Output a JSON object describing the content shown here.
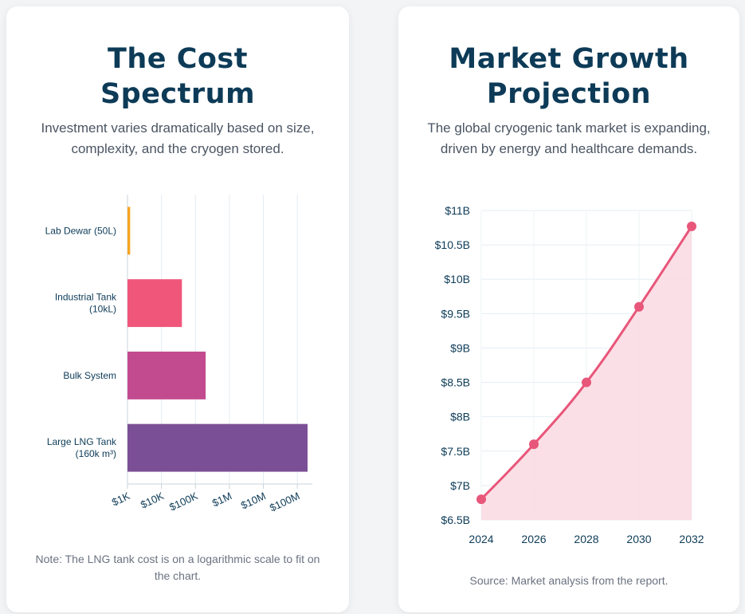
{
  "cost_card": {
    "title_line1": "The Cost",
    "title_line2": "Spectrum",
    "subtitle": "Investment varies dramatically based on size, complexity, and the cryogen stored.",
    "note": "Note: The LNG tank cost is on a logarithmic scale to fit on the chart."
  },
  "growth_card": {
    "title_line1": "Market Growth",
    "title_line2": "Projection",
    "subtitle": "The global cryogenic tank market is expanding, driven by energy and healthcare demands.",
    "note": "Source: Market analysis from the report."
  },
  "chart_data": [
    {
      "type": "bar",
      "orientation": "horizontal",
      "x_scale": "log",
      "categories": [
        [
          "Lab Dewar (50L)"
        ],
        [
          "Industrial Tank",
          "(10kL)"
        ],
        [
          "Bulk System"
        ],
        [
          "Large LNG Tank",
          "(160k m³)"
        ]
      ],
      "values": [
        1200,
        40000,
        200000,
        200000000
      ],
      "colors": [
        "#f5a623",
        "#f0567a",
        "#c24b8f",
        "#7b4f96"
      ],
      "xlim": [
        1000,
        200000000
      ],
      "x_ticks": [
        {
          "value": 1000,
          "label": "$1K"
        },
        {
          "value": 10000,
          "label": "$10K"
        },
        {
          "value": 100000,
          "label": "$100K"
        },
        {
          "value": 1000000,
          "label": "$1M"
        },
        {
          "value": 10000000,
          "label": "$10M"
        },
        {
          "value": 100000000,
          "label": "$100M"
        }
      ],
      "grid": true
    },
    {
      "type": "area",
      "x": [
        2024,
        2026,
        2028,
        2030,
        2032
      ],
      "values": [
        6.8,
        7.6,
        8.5,
        9.6,
        10.77
      ],
      "ylim": [
        6.5,
        11
      ],
      "y_ticks": [
        {
          "value": 11,
          "label": "$11B"
        },
        {
          "value": 10.5,
          "label": "$10.5B"
        },
        {
          "value": 10,
          "label": "$10B"
        },
        {
          "value": 9.5,
          "label": "$9.5B"
        },
        {
          "value": 9,
          "label": "$9B"
        },
        {
          "value": 8.5,
          "label": "$8.5B"
        },
        {
          "value": 8,
          "label": "$8B"
        },
        {
          "value": 7.5,
          "label": "$7.5B"
        },
        {
          "value": 7,
          "label": "$7B"
        },
        {
          "value": 6.5,
          "label": "$6.5B"
        }
      ],
      "x_ticks": [
        "2024",
        "2026",
        "2028",
        "2030",
        "2032"
      ],
      "line_color": "#e8567a",
      "fill_color": "#fbdce3",
      "grid": true
    }
  ]
}
